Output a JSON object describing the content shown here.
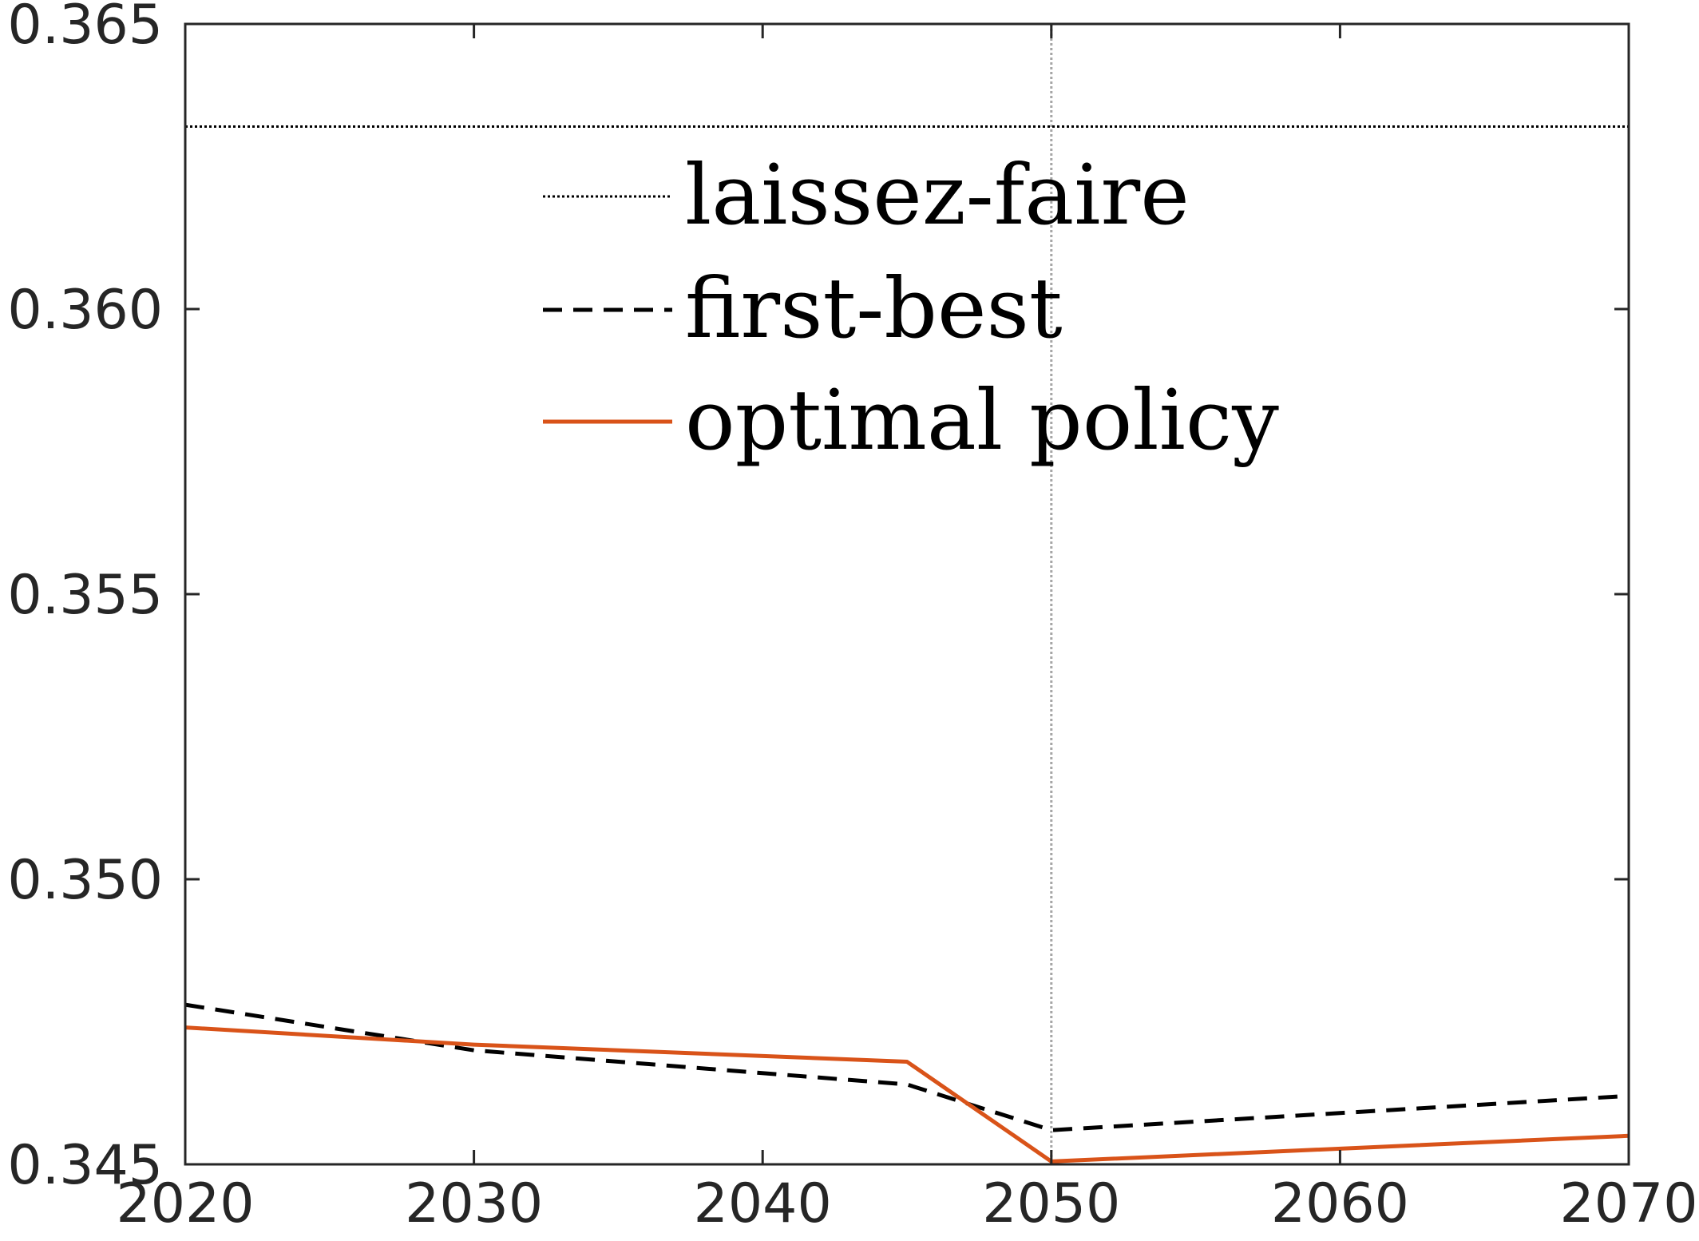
{
  "chart_data": {
    "type": "line",
    "title": "",
    "xlabel": "",
    "ylabel": "",
    "xlim": [
      2020,
      2070
    ],
    "ylim": [
      0.345,
      0.365
    ],
    "x_ticks": [
      2020,
      2030,
      2040,
      2050,
      2060,
      2070
    ],
    "x_tick_labels": [
      "2020",
      "2030",
      "2040",
      "2050",
      "2060",
      "2070"
    ],
    "y_ticks": [
      0.345,
      0.35,
      0.355,
      0.36,
      0.365
    ],
    "y_tick_labels": [
      "0.345",
      "0.350",
      "0.355",
      "0.360",
      "0.365"
    ],
    "grid": false,
    "reference_lines": [
      {
        "axis": "x",
        "value": 2050,
        "style": "dotted",
        "color": "#a6a6a6"
      }
    ],
    "legend": {
      "position": "top-center"
    },
    "series": [
      {
        "name": "laissez-faire",
        "style": "dotted",
        "color": "#000000",
        "x": [
          2020,
          2070
        ],
        "y": [
          0.3632,
          0.3632
        ]
      },
      {
        "name": "first-best",
        "style": "dashed",
        "color": "#000000",
        "x": [
          2020,
          2030,
          2045,
          2050,
          2070
        ],
        "y": [
          0.3478,
          0.347,
          0.3464,
          0.3456,
          0.3462
        ]
      },
      {
        "name": "optimal policy",
        "style": "solid",
        "color": "#d95319",
        "x": [
          2020,
          2030,
          2045,
          2050,
          2070
        ],
        "y": [
          0.3474,
          0.3471,
          0.3468,
          0.34505,
          0.3455
        ]
      }
    ]
  }
}
